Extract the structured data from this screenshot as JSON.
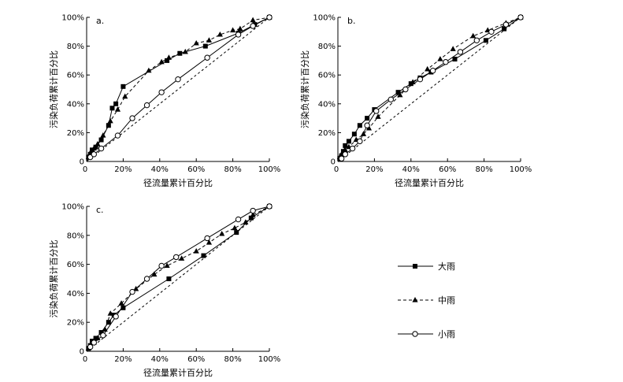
{
  "legend": {
    "items": [
      {
        "key": "heavy",
        "label": "大雨",
        "marker": "square",
        "dash": "solid"
      },
      {
        "key": "moderate",
        "label": "中雨",
        "marker": "triangle",
        "dash": "dashed"
      },
      {
        "key": "light",
        "label": "小雨",
        "marker": "circle",
        "dash": "solid"
      }
    ]
  },
  "chart_data": [
    {
      "type": "line",
      "panel_label": "a.",
      "xlabel": "径流量累计百分比",
      "ylabel": "污染负荷累计百分比",
      "xlim": [
        0,
        100
      ],
      "ylim": [
        0,
        100
      ],
      "xticks": [
        "0",
        "20%",
        "40%",
        "60%",
        "80%",
        "100%"
      ],
      "yticks": [
        "0",
        "20%",
        "40%",
        "60%",
        "80%",
        "100%"
      ],
      "reference_line": [
        [
          0,
          0
        ],
        [
          100,
          100
        ]
      ],
      "series": [
        {
          "key": "heavy",
          "x": [
            0,
            1,
            2,
            3,
            5,
            8,
            12,
            14,
            16,
            20,
            44,
            51,
            65,
            83,
            92,
            100
          ],
          "y": [
            0,
            3,
            5,
            8,
            10,
            15,
            25,
            37,
            40,
            52,
            70,
            75,
            80,
            89,
            95,
            100
          ]
        },
        {
          "key": "moderate",
          "x": [
            0,
            1,
            2,
            4,
            6,
            9,
            13,
            17,
            21,
            34,
            41,
            45,
            54,
            60,
            67,
            73,
            80,
            84,
            91,
            100
          ],
          "y": [
            0,
            3,
            6,
            9,
            12,
            18,
            28,
            36,
            45,
            63,
            69,
            72,
            76,
            82,
            84,
            88,
            91,
            92,
            98,
            100
          ]
        },
        {
          "key": "light",
          "x": [
            0,
            2,
            4,
            8,
            17,
            25,
            33,
            41,
            50,
            66,
            83,
            91,
            100
          ],
          "y": [
            0,
            3,
            5,
            9,
            18,
            30,
            39,
            48,
            57,
            72,
            88,
            94,
            100
          ]
        }
      ]
    },
    {
      "type": "line",
      "panel_label": "b.",
      "xlabel": "径流量累计百分比",
      "ylabel": "污染负荷累计百分比",
      "xlim": [
        0,
        100
      ],
      "ylim": [
        0,
        100
      ],
      "xticks": [
        "0",
        "20%",
        "40%",
        "60%",
        "80%",
        "100%"
      ],
      "yticks": [
        "0",
        "20%",
        "40%",
        "60%",
        "80%",
        "100%"
      ],
      "reference_line": [
        [
          0,
          0
        ],
        [
          100,
          100
        ]
      ],
      "series": [
        {
          "key": "heavy",
          "x": [
            0,
            1,
            2,
            3,
            4,
            6,
            9,
            12,
            16,
            20,
            33,
            40,
            45,
            51,
            64,
            81,
            91,
            100
          ],
          "y": [
            0,
            2,
            4,
            7,
            11,
            14,
            19,
            25,
            30,
            36,
            48,
            54,
            58,
            62,
            71,
            84,
            92,
            100
          ]
        },
        {
          "key": "moderate",
          "x": [
            0,
            1,
            2,
            4,
            6,
            10,
            14,
            17,
            22,
            34,
            41,
            49,
            56,
            63,
            74,
            82,
            92,
            100
          ],
          "y": [
            0,
            3,
            5,
            8,
            10,
            15,
            19,
            23,
            31,
            46,
            55,
            64,
            71,
            78,
            87,
            91,
            96,
            100
          ]
        },
        {
          "key": "light",
          "x": [
            0,
            2,
            4,
            8,
            12,
            16,
            21,
            29,
            37,
            45,
            52,
            59,
            67,
            76,
            84,
            92,
            100
          ],
          "y": [
            0,
            2,
            5,
            9,
            14,
            25,
            35,
            43,
            50,
            57,
            63,
            69,
            76,
            84,
            90,
            95,
            100
          ]
        }
      ]
    },
    {
      "type": "line",
      "panel_label": "c.",
      "xlabel": "径流量累计百分比",
      "ylabel": "污染负荷累计百分比",
      "xlim": [
        0,
        100
      ],
      "ylim": [
        0,
        100
      ],
      "xticks": [
        "0",
        "20%",
        "40%",
        "60%",
        "80%",
        "100%"
      ],
      "yticks": [
        "0",
        "20%",
        "40%",
        "60%",
        "80%",
        "100%"
      ],
      "reference_line": [
        [
          0,
          0
        ],
        [
          100,
          100
        ]
      ],
      "series": [
        {
          "key": "heavy",
          "x": [
            0,
            1,
            2,
            3,
            5,
            8,
            12,
            15,
            20,
            45,
            64,
            82,
            90,
            100
          ],
          "y": [
            0,
            2,
            4,
            7,
            9,
            13,
            20,
            25,
            30,
            50,
            66,
            82,
            92,
            100
          ]
        },
        {
          "key": "moderate",
          "x": [
            0,
            1,
            2,
            4,
            6,
            10,
            13,
            19,
            27,
            37,
            44,
            52,
            60,
            67,
            74,
            81,
            87,
            91,
            100
          ],
          "y": [
            0,
            2,
            4,
            6,
            9,
            15,
            26,
            33,
            43,
            53,
            59,
            64,
            69,
            75,
            81,
            85,
            89,
            94,
            100
          ]
        },
        {
          "key": "light",
          "x": [
            0,
            2,
            4,
            9,
            16,
            25,
            33,
            41,
            49,
            66,
            83,
            91,
            100
          ],
          "y": [
            0,
            3,
            6,
            11,
            24,
            41,
            50,
            59,
            65,
            78,
            91,
            97,
            100
          ]
        }
      ]
    }
  ]
}
